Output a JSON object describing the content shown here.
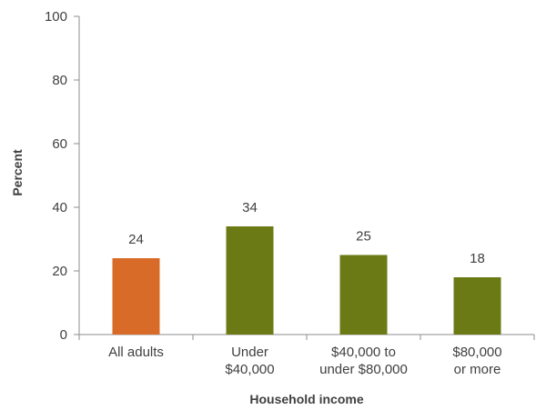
{
  "chart_data": {
    "type": "bar",
    "title": "",
    "xlabel": "Household income",
    "ylabel": "Percent",
    "ylim": [
      0,
      100
    ],
    "yticks": [
      0,
      20,
      40,
      60,
      80,
      100
    ],
    "grid": false,
    "categories": [
      [
        "All adults"
      ],
      [
        "Under",
        "$40,000"
      ],
      [
        "$40,000 to",
        "under $80,000"
      ],
      [
        "$80,000",
        "or more"
      ]
    ],
    "values": [
      24,
      34,
      25,
      18
    ],
    "data_labels": [
      "24",
      "34",
      "25",
      "18"
    ],
    "colors": [
      "#d86b27",
      "#6b7a15",
      "#6b7a15",
      "#6b7a15"
    ]
  }
}
